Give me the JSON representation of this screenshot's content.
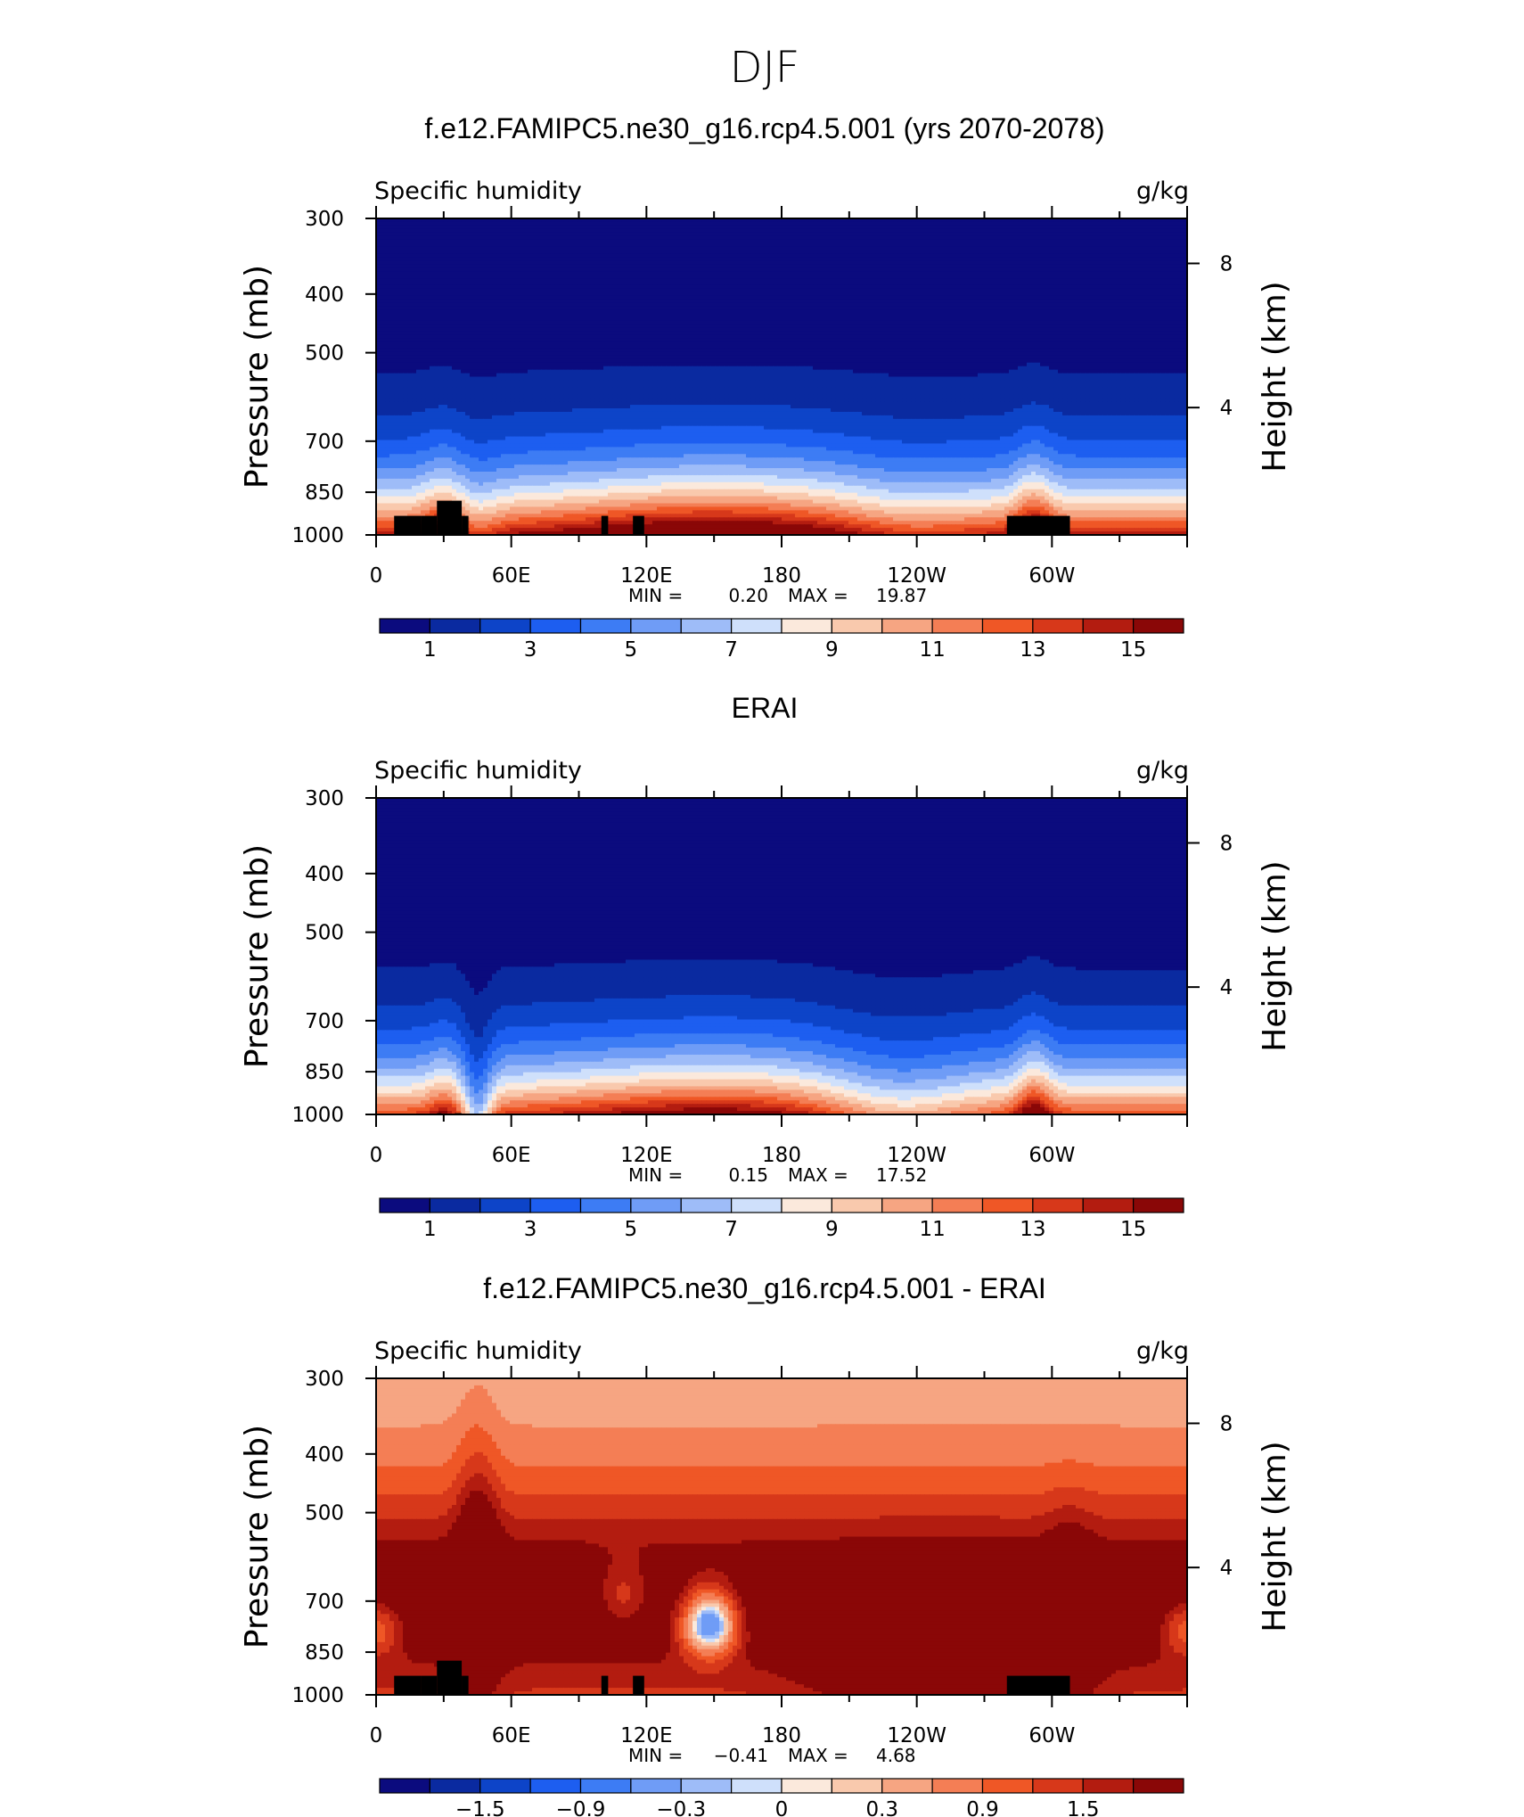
{
  "figure_title": "DJF",
  "colors": {
    "levels": [
      "#0b0b7e",
      "#0a2aa0",
      "#0d44c8",
      "#1d5ef0",
      "#3d7cf4",
      "#6f9cf6",
      "#9ebcf8",
      "#cfe0fb",
      "#fbe9dc",
      "#f9c9ad",
      "#f6a582",
      "#f47e55",
      "#ef5726",
      "#d7381a",
      "#b31c10",
      "#8a0707"
    ],
    "land": "#000000",
    "frame": "#000000"
  },
  "chart_data": [
    {
      "type": "heatmap",
      "title": "f.e12.FAMIPC5.ne30_g16.rcp4.5.001 (yrs 2070-2078)",
      "subtitle_left": "Specific humidity",
      "subtitle_right": "g/kg",
      "ylabel": "Pressure (mb)",
      "ylabel_right": "Height (km)",
      "x_ticks": [
        "0",
        "60E",
        "120E",
        "180",
        "120W",
        "60W"
      ],
      "y_ticks": [
        "300",
        "400",
        "500",
        "700",
        "850",
        "1000"
      ],
      "y_right_ticks": [
        "8",
        "4"
      ],
      "min_label": "MIN =",
      "min_value": "0.20",
      "max_label": "MAX =",
      "max_value": "19.87",
      "colorbar_labels": [
        "1",
        "3",
        "5",
        "7",
        "9",
        "11",
        "13",
        "15"
      ],
      "colorbar_levels": [
        1,
        2,
        3,
        4,
        5,
        6,
        7,
        8,
        9,
        10,
        11,
        12,
        13,
        14,
        15
      ],
      "field_kind": "model"
    },
    {
      "type": "heatmap",
      "title": "ERAI",
      "subtitle_left": "Specific humidity",
      "subtitle_right": "g/kg",
      "ylabel": "Pressure (mb)",
      "ylabel_right": "Height (km)",
      "x_ticks": [
        "0",
        "60E",
        "120E",
        "180",
        "120W",
        "60W"
      ],
      "y_ticks": [
        "300",
        "400",
        "500",
        "700",
        "850",
        "1000"
      ],
      "y_right_ticks": [
        "8",
        "4"
      ],
      "min_label": "MIN =",
      "min_value": "0.15",
      "max_label": "MAX =",
      "max_value": "17.52",
      "colorbar_labels": [
        "1",
        "3",
        "5",
        "7",
        "9",
        "11",
        "13",
        "15"
      ],
      "colorbar_levels": [
        1,
        2,
        3,
        4,
        5,
        6,
        7,
        8,
        9,
        10,
        11,
        12,
        13,
        14,
        15
      ],
      "field_kind": "obs"
    },
    {
      "type": "heatmap",
      "title": "f.e12.FAMIPC5.ne30_g16.rcp4.5.001 - ERAI",
      "subtitle_left": "Specific humidity",
      "subtitle_right": "g/kg",
      "ylabel": "Pressure (mb)",
      "ylabel_right": "Height (km)",
      "x_ticks": [
        "0",
        "60E",
        "120E",
        "180",
        "120W",
        "60W"
      ],
      "y_ticks": [
        "300",
        "400",
        "500",
        "700",
        "850",
        "1000"
      ],
      "y_right_ticks": [
        "8",
        "4"
      ],
      "min_label": "MIN =",
      "min_value": "−0.41",
      "max_label": "MAX =",
      "max_value": "4.68",
      "colorbar_labels": [
        "−1.5",
        "−0.9",
        "−0.3",
        "0",
        "0.3",
        "0.9",
        "1.5"
      ],
      "colorbar_levels": [
        -1.8,
        -1.5,
        -1.2,
        -0.9,
        -0.6,
        -0.3,
        -0.1,
        0,
        0.1,
        0.3,
        0.6,
        0.9,
        1.2,
        1.5,
        1.8
      ],
      "field_kind": "diff"
    }
  ]
}
